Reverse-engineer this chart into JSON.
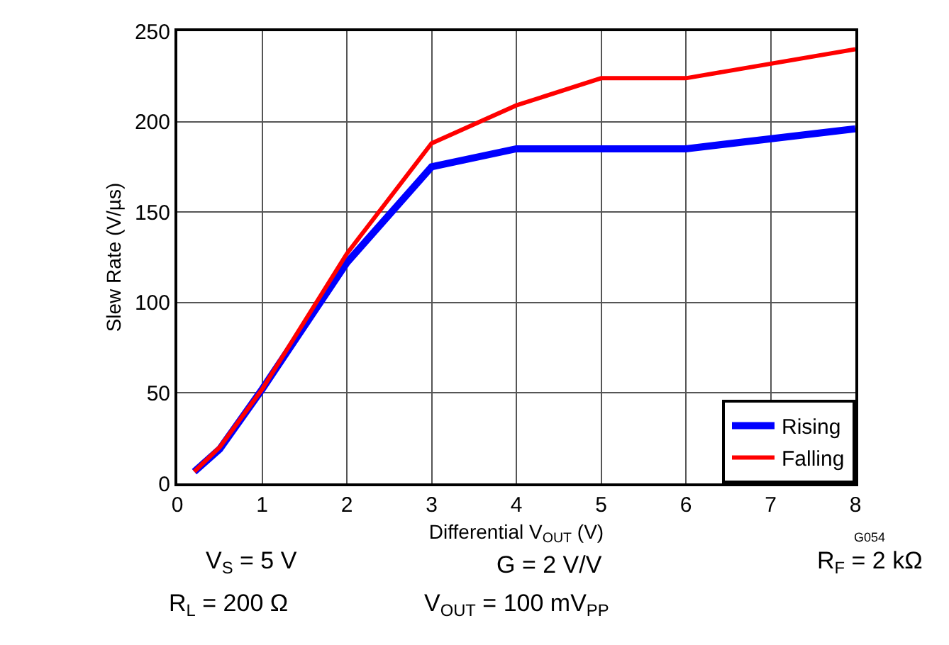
{
  "chart_data": {
    "type": "line",
    "xlabel": "Differential V$_{OUT}$ (V)",
    "ylabel": "Slew Rate (V/µs)",
    "xlim": [
      0,
      8
    ],
    "xticks": [
      0,
      1,
      2,
      3,
      4,
      5,
      6,
      7,
      8
    ],
    "ylim": [
      0,
      250
    ],
    "yticks": [
      0,
      50,
      100,
      150,
      200,
      250
    ],
    "grid": true,
    "legend": "bottom right",
    "line_style": "solid",
    "series": [
      {
        "name": "Rising",
        "color": "#0000ff",
        "x": [
          0.2,
          0.5,
          1,
          2,
          3,
          4,
          5,
          6,
          8
        ],
        "values": [
          6.5,
          19,
          52,
          122,
          175,
          185,
          185,
          185,
          196
        ]
      },
      {
        "name": "Falling",
        "color": "#ff0000",
        "x": [
          0.2,
          0.5,
          1,
          2,
          3,
          4,
          5,
          6,
          8
        ],
        "values": [
          6.5,
          20,
          52,
          127,
          188,
          209,
          224,
          224,
          240
        ]
      }
    ],
    "annotations": [
      "G054",
      "V$_{S}$ = 5 V",
      "G = 2 V/V",
      "R$_{F}$ = 2 kΩ",
      "R$_{L}$ = 200 Ω",
      "V$_{OUT}$ = 100 mV$_{PP}$"
    ]
  }
}
